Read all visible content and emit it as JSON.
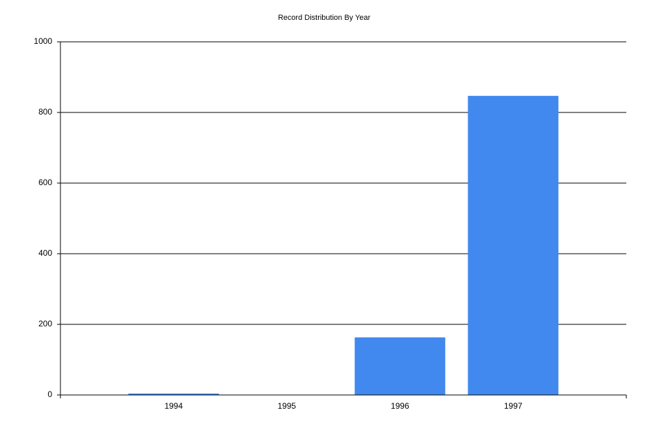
{
  "chart_data": {
    "type": "bar",
    "title": "Record Distribution By Year",
    "x": [
      1994,
      1995,
      1996,
      1997
    ],
    "values": [
      4,
      0,
      163,
      847
    ],
    "color": "#4189ee",
    "xlim": [
      1993,
      1998
    ],
    "xticks": [
      1994,
      1995,
      1996,
      1997
    ],
    "ylim": [
      0,
      1000
    ],
    "yticks": [
      0,
      200,
      400,
      600,
      800,
      1000
    ],
    "grid": true
  }
}
